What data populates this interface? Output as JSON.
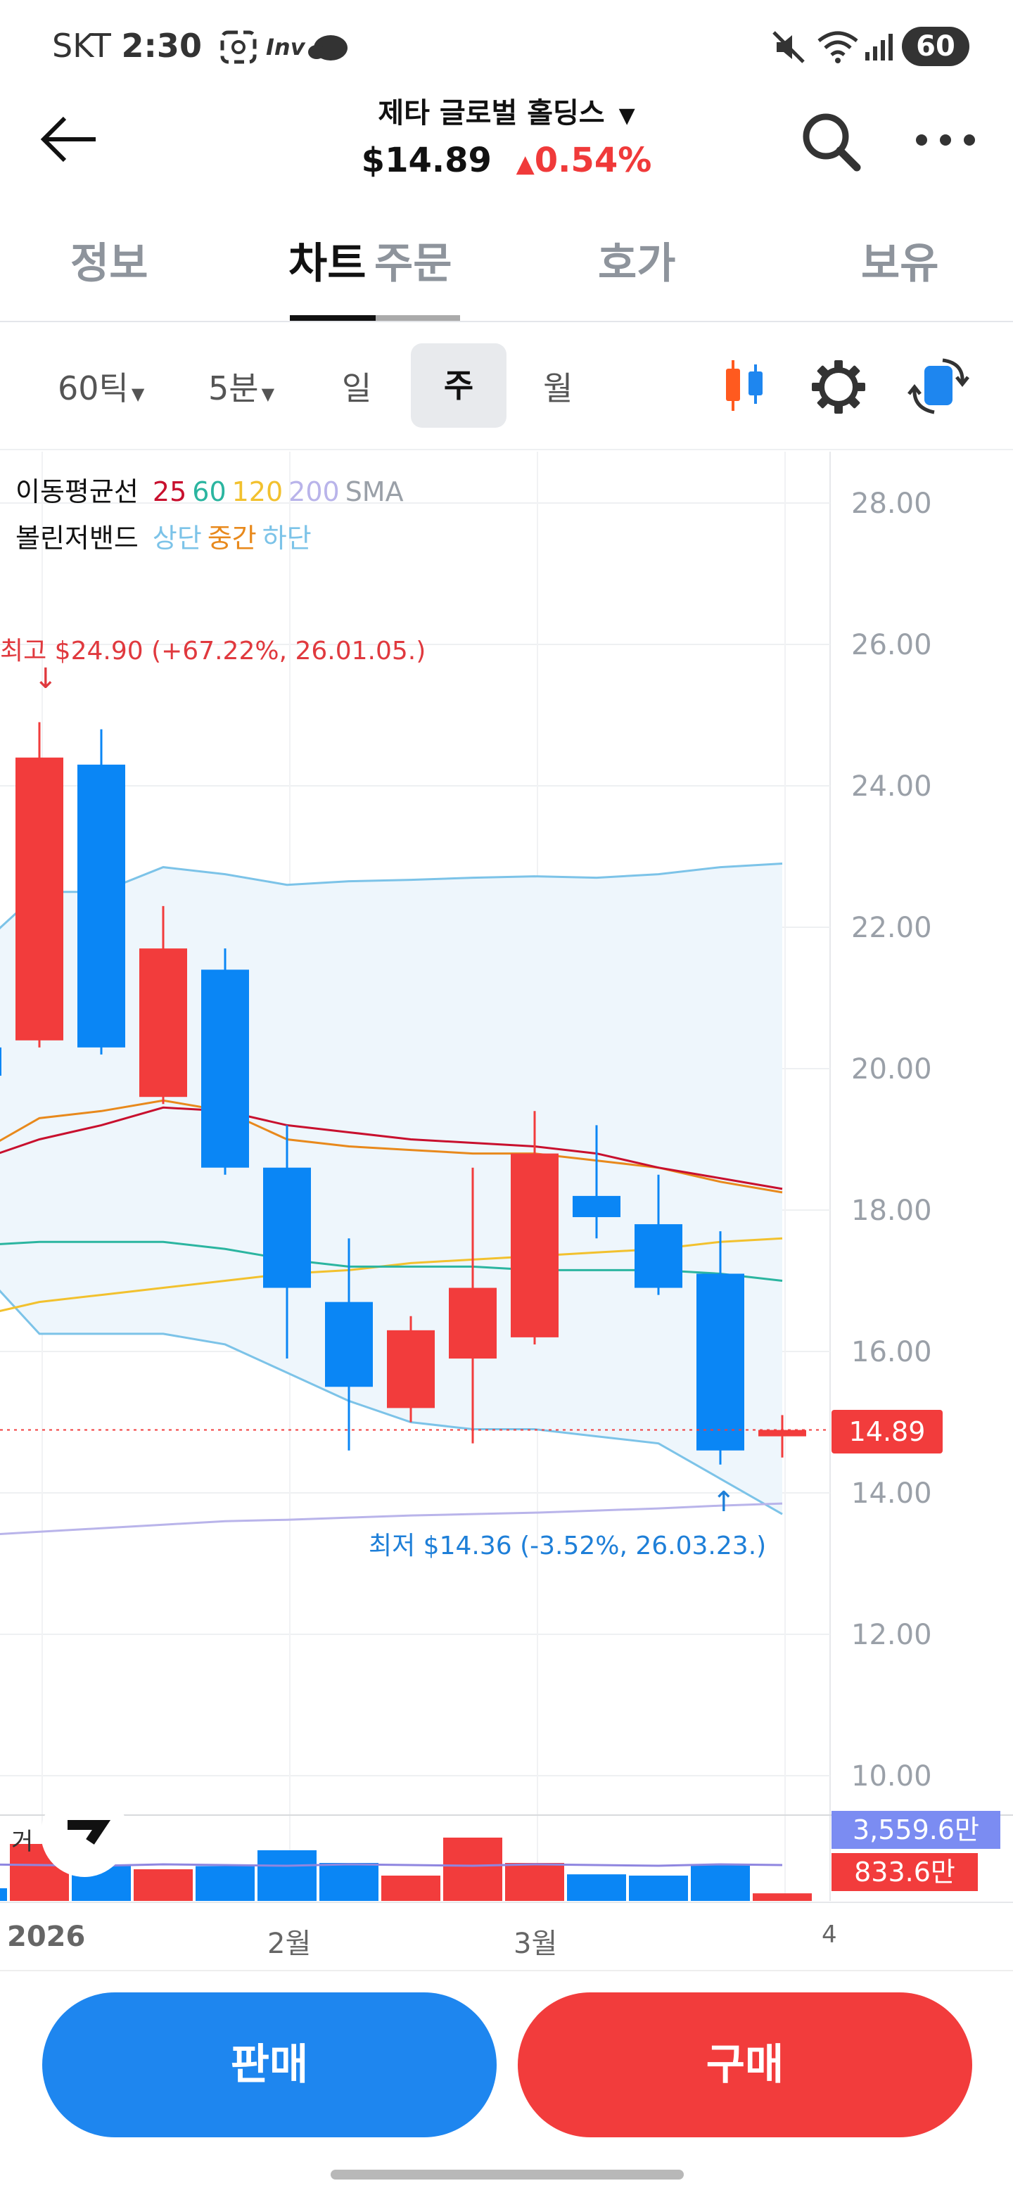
{
  "status_bar": {
    "carrier": "SKT",
    "time": "2:30",
    "app_badge": "Inv",
    "battery": "60"
  },
  "header": {
    "title": "제타 글로벌 홀딩스",
    "price": "$14.89",
    "change": "0.54%",
    "change_color": "#f03a3a"
  },
  "tabs": [
    "정보",
    "차트",
    "주문",
    "호가",
    "보유"
  ],
  "active_tab": "차트",
  "period": {
    "tick": "60틱",
    "minute": "5분",
    "day": "일",
    "week": "주",
    "month": "월",
    "selected": "주"
  },
  "legend": {
    "ma_label": "이동평균선",
    "ma_values": [
      "25",
      "60",
      "120",
      "200"
    ],
    "ma_colors": [
      "#c8102e",
      "#2bb5a0",
      "#f2c12e",
      "#b9b4ea"
    ],
    "ma_suffix": "SMA",
    "bb_label": "볼린저밴드",
    "bb_upper": "상단",
    "bb_mid": "중간",
    "bb_lower": "하단",
    "bb_upper_color": "#7cc3e8",
    "bb_mid_color": "#e8891c",
    "bb_lower_color": "#7cc3e8"
  },
  "annotations": {
    "high": "최고 $24.90 (+67.22%, 26.01.05.)",
    "low": "최저 $14.36 (-3.52%, 26.03.23.)"
  },
  "current_price_label": "14.89",
  "volume": {
    "label": "거",
    "ma_value": "3,559.6만",
    "value": "833.6만"
  },
  "x_labels": [
    "2026",
    "2월",
    "3월",
    "4"
  ],
  "buttons": {
    "sell": "판매",
    "buy": "구매",
    "sell_color": "#1e86ef",
    "buy_color": "#f23c3c"
  },
  "chart_data": {
    "type": "candlestick",
    "y_ticks": [
      "28.00",
      "26.00",
      "24.00",
      "22.00",
      "20.00",
      "18.00",
      "16.00",
      "14.00",
      "12.00",
      "10.00"
    ],
    "ylim": [
      9.0,
      28.8
    ],
    "up_color": "#f23c3c",
    "down_color": "#0a86f5",
    "candles": [
      {
        "o": 20.3,
        "h": 20.4,
        "l": 19.9,
        "c": 19.9
      },
      {
        "o": 20.4,
        "h": 24.9,
        "l": 20.3,
        "c": 24.4
      },
      {
        "o": 24.3,
        "h": 24.8,
        "l": 20.2,
        "c": 20.3
      },
      {
        "o": 19.6,
        "h": 22.3,
        "l": 19.5,
        "c": 21.7
      },
      {
        "o": 21.4,
        "h": 21.7,
        "l": 18.5,
        "c": 18.6
      },
      {
        "o": 18.6,
        "h": 19.2,
        "l": 15.9,
        "c": 16.9
      },
      {
        "o": 16.7,
        "h": 17.6,
        "l": 14.6,
        "c": 15.5
      },
      {
        "o": 15.2,
        "h": 16.5,
        "l": 15.0,
        "c": 16.3
      },
      {
        "o": 15.9,
        "h": 18.6,
        "l": 14.7,
        "c": 16.9
      },
      {
        "o": 16.2,
        "h": 19.4,
        "l": 16.1,
        "c": 18.8
      },
      {
        "o": 18.2,
        "h": 19.2,
        "l": 17.6,
        "c": 17.9
      },
      {
        "o": 17.8,
        "h": 18.5,
        "l": 16.8,
        "c": 16.9
      },
      {
        "o": 17.1,
        "h": 17.7,
        "l": 14.4,
        "c": 14.6
      },
      {
        "o": 14.8,
        "h": 15.1,
        "l": 14.5,
        "c": 14.89
      }
    ],
    "bb_upper": [
      21.7,
      22.5,
      22.5,
      22.85,
      22.75,
      22.6,
      22.65,
      22.67,
      22.7,
      22.72,
      22.7,
      22.75,
      22.85,
      22.9
    ],
    "bb_lower": [
      17.2,
      16.25,
      16.25,
      16.25,
      16.1,
      15.7,
      15.3,
      15.0,
      14.9,
      14.9,
      14.8,
      14.7,
      14.2,
      13.7
    ],
    "ma25": [
      18.7,
      19.0,
      19.2,
      19.45,
      19.4,
      19.2,
      19.1,
      19.0,
      18.95,
      18.9,
      18.8,
      18.6,
      18.45,
      18.3
    ],
    "bb_mid": [
      18.8,
      19.3,
      19.4,
      19.55,
      19.4,
      19.0,
      18.9,
      18.85,
      18.8,
      18.8,
      18.7,
      18.6,
      18.4,
      18.25
    ],
    "ma60": [
      17.5,
      17.55,
      17.55,
      17.55,
      17.45,
      17.3,
      17.2,
      17.2,
      17.2,
      17.15,
      17.15,
      17.15,
      17.1,
      17.0
    ],
    "ma120": [
      16.5,
      16.7,
      16.8,
      16.9,
      17.0,
      17.1,
      17.15,
      17.25,
      17.3,
      17.35,
      17.4,
      17.45,
      17.55,
      17.6
    ],
    "ma200": [
      13.4,
      13.45,
      13.5,
      13.55,
      13.6,
      13.62,
      13.65,
      13.68,
      13.7,
      13.72,
      13.75,
      13.78,
      13.82,
      13.85
    ],
    "volumes": [
      0.2,
      0.9,
      0.55,
      0.5,
      0.55,
      0.8,
      0.6,
      0.4,
      1.0,
      0.6,
      0.42,
      0.4,
      0.58,
      0.12
    ],
    "volume_up": [
      false,
      true,
      false,
      true,
      false,
      false,
      false,
      true,
      true,
      true,
      false,
      false,
      false,
      true
    ]
  }
}
